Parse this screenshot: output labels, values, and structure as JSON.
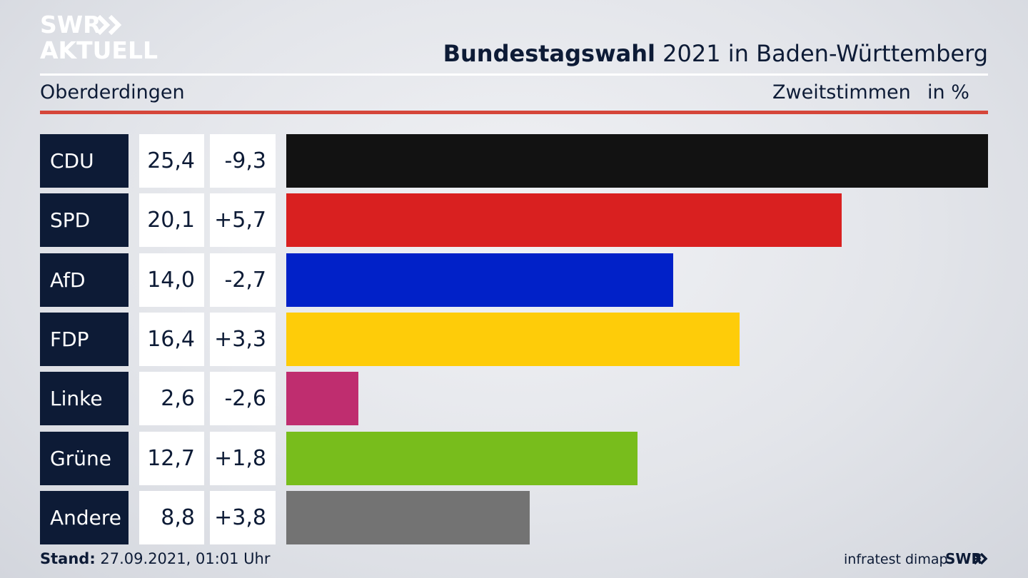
{
  "brand": {
    "line1": "SWR",
    "line2": "AKTUELL",
    "small": "SWR"
  },
  "header": {
    "title_bold": "Bundestagswahl",
    "title_rest": " 2021 in Baden-Württemberg"
  },
  "subheader": {
    "location": "Oberderdingen",
    "measure": "Zweitstimmen",
    "unit": "in %"
  },
  "footer": {
    "stand_label": "Stand:",
    "stand_value": " 27.09.2021, 01:01 Uhr",
    "source": "infratest dimap"
  },
  "chart_data": {
    "type": "bar",
    "orientation": "horizontal",
    "title": "Bundestagswahl 2021 in Baden-Württemberg",
    "categories": [
      "CDU",
      "SPD",
      "AfD",
      "FDP",
      "Linke",
      "Grüne",
      "Andere"
    ],
    "values": [
      25.4,
      20.1,
      14.0,
      16.4,
      2.6,
      12.7,
      8.8
    ],
    "value_labels": [
      "25,4",
      "20,1",
      "14,0",
      "16,4",
      "2,6",
      "12,7",
      "8,8"
    ],
    "changes": [
      -9.3,
      5.7,
      -2.7,
      3.3,
      -2.6,
      1.8,
      3.8
    ],
    "change_labels": [
      "-9,3",
      "+5,7",
      "-2,7",
      "+3,3",
      "-2,6",
      "+1,8",
      "+3,8"
    ],
    "colors": [
      "#121212",
      "#d92020",
      "#0121c8",
      "#fecc09",
      "#bf2d6f",
      "#78bd1c",
      "#737373"
    ],
    "xlim": [
      0,
      25.4
    ],
    "grid": false,
    "legend": "none"
  }
}
